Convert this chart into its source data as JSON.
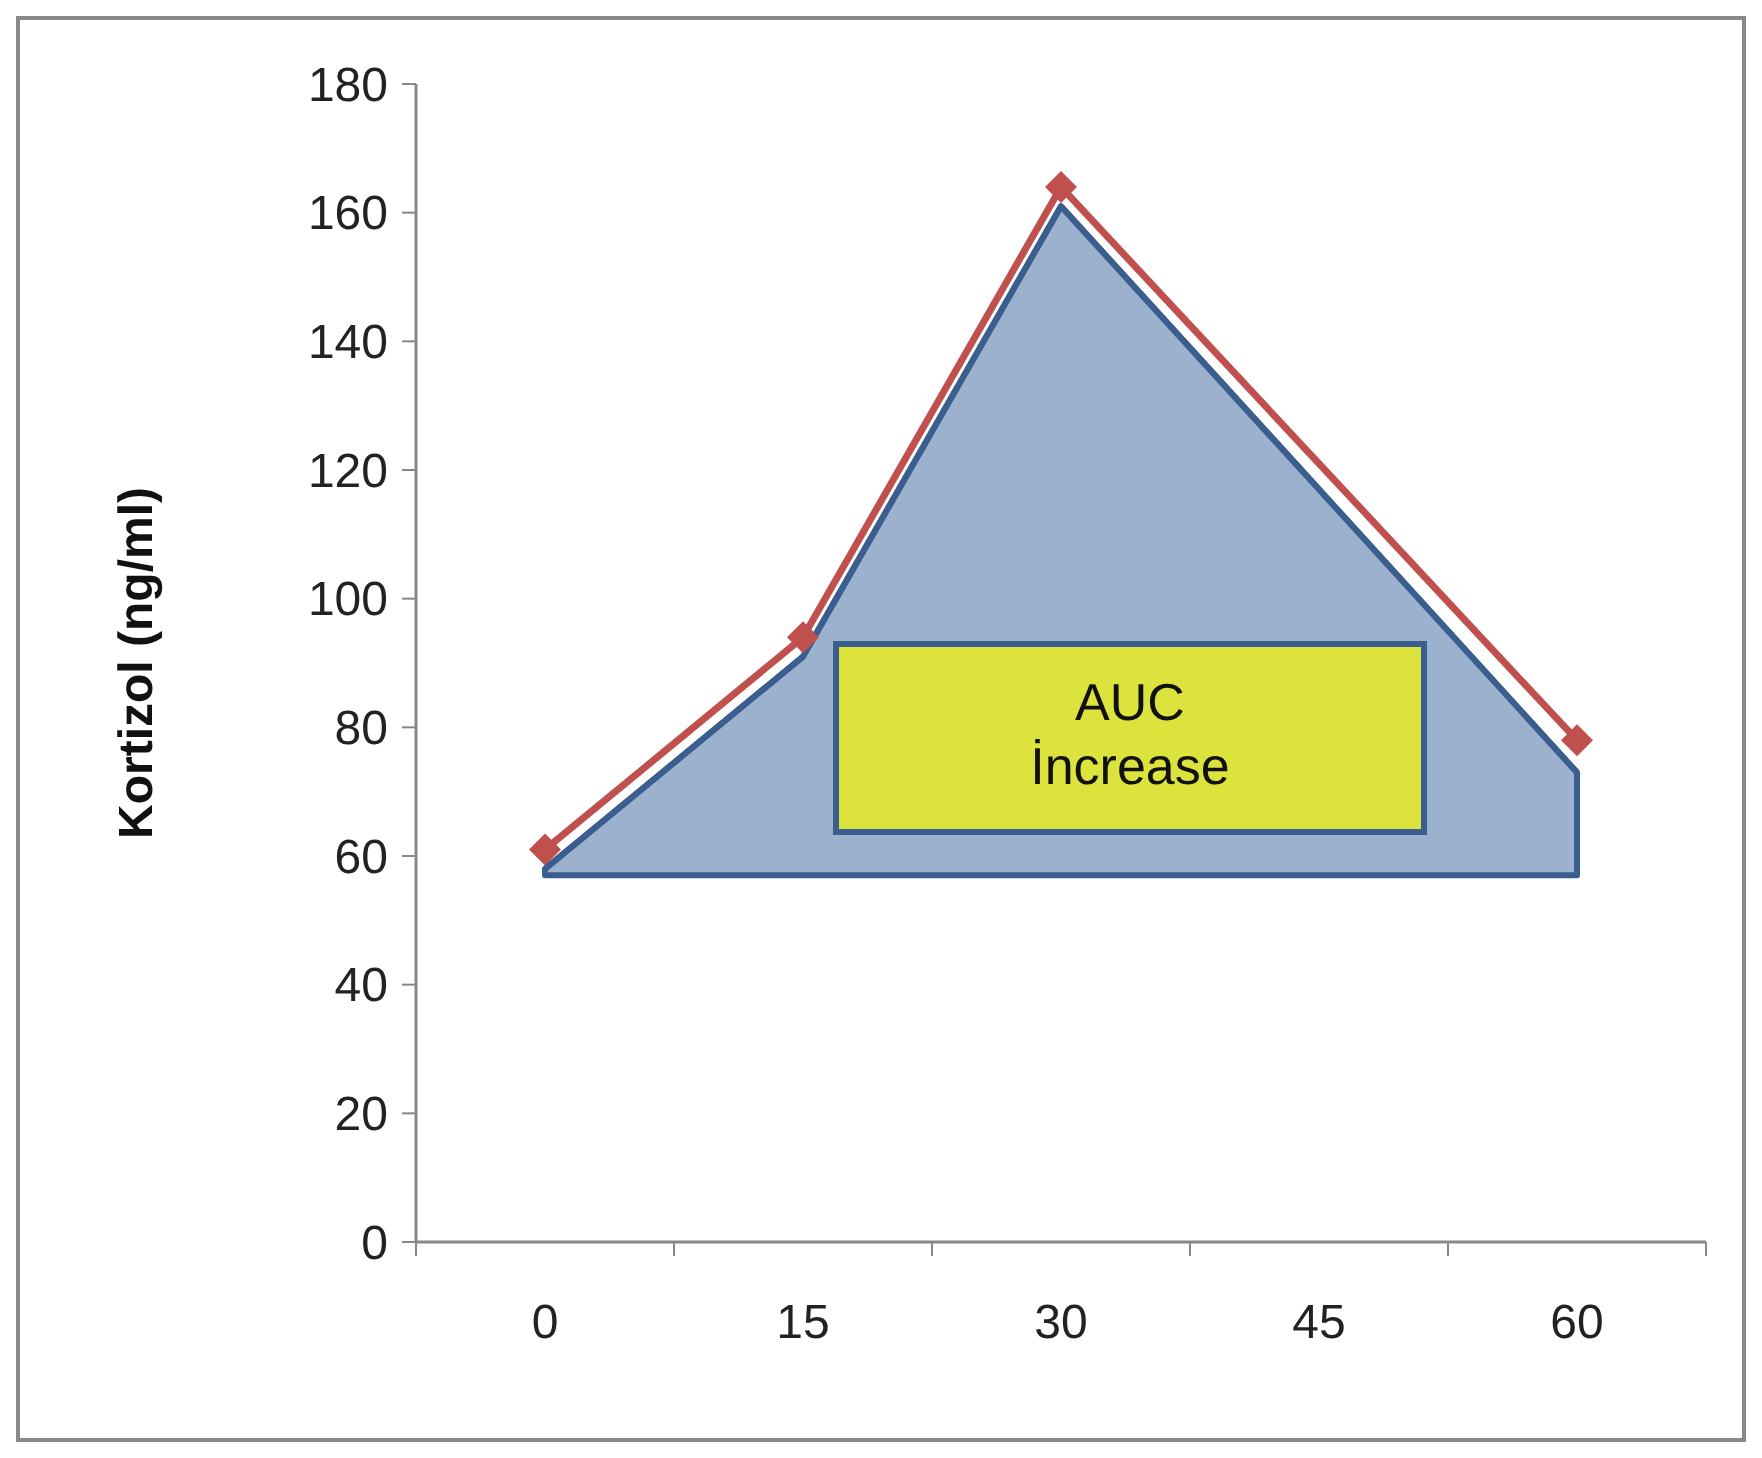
{
  "chart_data": {
    "type": "line",
    "ylabel": "Kortizol (ng/ml)",
    "categories": [
      "0",
      "15",
      "30",
      "45",
      "60"
    ],
    "ylim": [
      0,
      180
    ],
    "yticks": [
      0,
      20,
      40,
      60,
      80,
      100,
      120,
      140,
      160,
      180
    ],
    "series": [
      {
        "color": "#3a5f8f",
        "values": [
          58,
          91,
          161,
          null,
          73
        ],
        "lower": [
          57,
          57,
          57,
          null,
          57
        ],
        "upper": [
          58,
          91,
          161,
          null,
          73
        ]
      },
      {
        "color": "#c0504d",
        "values": [
          61,
          94,
          164,
          null,
          78
        ],
        "marker": "diamond",
        "line_style": "solid"
      }
    ],
    "annotations": [
      "AUC İncrease"
    ]
  }
}
